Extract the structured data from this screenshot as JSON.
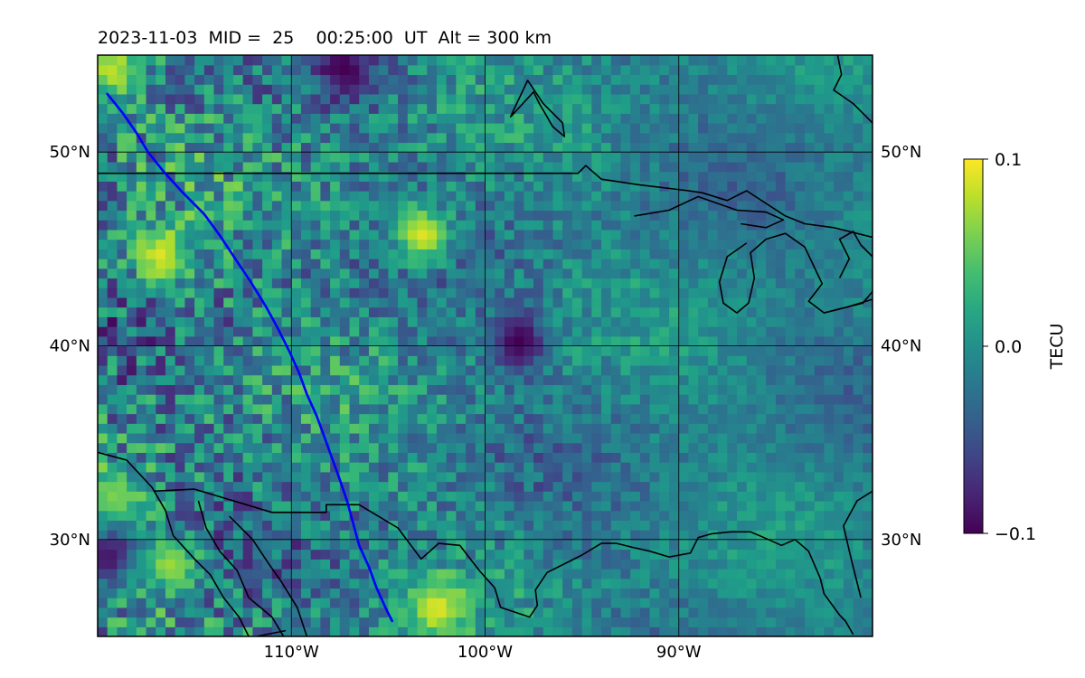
{
  "chart_data": {
    "type": "heatmap",
    "title": "2023-11-03  MID =  25    00:25:00  UT  Alt = 300 km",
    "projection": "lat-lon map",
    "xlim": [
      -120,
      -80
    ],
    "ylim": [
      25,
      55
    ],
    "x_ticks": [
      -110,
      -100,
      -90
    ],
    "x_tick_labels": [
      "110°W",
      "100°W",
      "90°W"
    ],
    "y_ticks": [
      30,
      40,
      50
    ],
    "y_tick_labels_left": [
      "30°N",
      "40°N",
      "50°N"
    ],
    "y_tick_labels_right": [
      "30°N",
      "40°N",
      "50°N"
    ],
    "grid": true,
    "colormap": "viridis",
    "colorbar": {
      "label": "TECU",
      "vmin": -0.1,
      "vmax": 0.1,
      "ticks": [
        0.1,
        0.0,
        -0.1
      ],
      "tick_labels": [
        "0.1",
        "0.0",
        "−0.1"
      ],
      "placement": "right"
    },
    "field": {
      "quantity": "TEC perturbation",
      "units": "TECU",
      "grid_resolution_deg": 0.5,
      "character": "noisy field centered near 0, higher variance in the west, smoother in the east",
      "features": [
        {
          "label": "",
          "lon": -107.5,
          "lat": 54,
          "value": -0.1
        },
        {
          "label": "",
          "lon": -119.5,
          "lat": 29,
          "value": -0.09
        },
        {
          "label": "",
          "lon": -116.5,
          "lat": 28.5,
          "value": 0.07
        },
        {
          "label": "",
          "lon": -119.5,
          "lat": 32,
          "value": 0.06
        },
        {
          "label": "",
          "lon": -119.5,
          "lat": 54,
          "value": 0.08
        },
        {
          "label": "",
          "lon": -103.5,
          "lat": 45.5,
          "value": 0.09
        },
        {
          "label": "",
          "lon": -117.0,
          "lat": 44.5,
          "value": 0.09
        },
        {
          "label": "",
          "lon": -102.7,
          "lat": 26.2,
          "value": 0.09
        },
        {
          "label": "",
          "lon": -98.5,
          "lat": 40,
          "value": -0.1
        }
      ]
    },
    "track": {
      "color": "#0000ff",
      "points": [
        [
          -119.5,
          53
        ],
        [
          -118.7,
          52
        ],
        [
          -118,
          51
        ],
        [
          -117.4,
          50
        ],
        [
          -116.6,
          49
        ],
        [
          -115.6,
          47.9
        ],
        [
          -114.5,
          46.8
        ],
        [
          -113.7,
          45.7
        ],
        [
          -112.9,
          44.5
        ],
        [
          -112.1,
          43.3
        ],
        [
          -111.3,
          42
        ],
        [
          -110.7,
          40.9
        ],
        [
          -110.1,
          39.7
        ],
        [
          -109.6,
          38.6
        ],
        [
          -109.2,
          37.5
        ],
        [
          -108.7,
          36.4
        ],
        [
          -108.3,
          35.3
        ],
        [
          -107.9,
          34.2
        ],
        [
          -107.5,
          33.1
        ],
        [
          -107.1,
          31.9
        ],
        [
          -106.8,
          30.8
        ],
        [
          -106.5,
          29.7
        ],
        [
          -106.0,
          28.6
        ],
        [
          -105.6,
          27.5
        ],
        [
          -105.1,
          26.4
        ],
        [
          -104.8,
          25.8
        ]
      ]
    },
    "coastlines": [
      [
        [
          -120,
          48.9
        ],
        [
          -115,
          48.9
        ],
        [
          -105,
          48.9
        ],
        [
          -95.2,
          48.9
        ],
        [
          -94.8,
          49.3
        ],
        [
          -94,
          48.6
        ],
        [
          -92,
          48.3
        ],
        [
          -89.5,
          48.0
        ],
        [
          -88.8,
          47.9
        ],
        [
          -87.5,
          47.5
        ],
        [
          -86.5,
          48
        ],
        [
          -84.5,
          46.7
        ],
        [
          -83.5,
          46.3
        ],
        [
          -82,
          46.1
        ],
        [
          -80,
          45.6
        ]
      ],
      [
        [
          -80,
          51.5
        ],
        [
          -81,
          52.5
        ],
        [
          -82,
          53.2
        ],
        [
          -81.6,
          54
        ],
        [
          -81.8,
          55
        ]
      ],
      [
        [
          -98.7,
          51.8
        ],
        [
          -97.8,
          53.7
        ],
        [
          -97.0,
          52.5
        ],
        [
          -96.0,
          51.5
        ],
        [
          -95.9,
          50.8
        ],
        [
          -96.5,
          51.3
        ],
        [
          -97.2,
          52.5
        ],
        [
          -97.5,
          53.1
        ],
        [
          -98.7,
          51.8
        ]
      ],
      [
        [
          -92.3,
          46.7
        ],
        [
          -90.5,
          47.0
        ],
        [
          -89,
          47.7
        ],
        [
          -87,
          47.0
        ],
        [
          -85.5,
          46.9
        ],
        [
          -84.6,
          46.5
        ],
        [
          -85.5,
          46.1
        ],
        [
          -86.8,
          46.3
        ]
      ],
      [
        [
          -86.5,
          45.3
        ],
        [
          -87.5,
          44.6
        ],
        [
          -87.9,
          43.3
        ],
        [
          -87.7,
          42.2
        ],
        [
          -87.0,
          41.7
        ],
        [
          -86.4,
          42.2
        ],
        [
          -86.1,
          43.5
        ],
        [
          -86.3,
          44.8
        ],
        [
          -85.5,
          45.5
        ],
        [
          -84.5,
          45.8
        ],
        [
          -83.5,
          45.1
        ],
        [
          -82.6,
          43.2
        ],
        [
          -83.3,
          42.3
        ],
        [
          -82.5,
          41.7
        ],
        [
          -80.5,
          42.2
        ],
        [
          -80,
          42.8
        ]
      ],
      [
        [
          -81.7,
          43.5
        ],
        [
          -81.2,
          44.5
        ],
        [
          -81.7,
          45.5
        ],
        [
          -81.0,
          45.9
        ],
        [
          -80.6,
          45.2
        ],
        [
          -80,
          44.6
        ]
      ],
      [
        [
          -82.5,
          41.7
        ],
        [
          -81.3,
          42.0
        ],
        [
          -80,
          42.4
        ]
      ],
      [
        [
          -120,
          34.5
        ],
        [
          -118.5,
          34.1
        ],
        [
          -117.2,
          32.7
        ],
        [
          -116.5,
          31.5
        ],
        [
          -116.1,
          30.2
        ],
        [
          -115,
          29.0
        ],
        [
          -114.2,
          28.2
        ],
        [
          -113.5,
          27.0
        ],
        [
          -112.7,
          26.0
        ],
        [
          -112.2,
          25
        ]
      ],
      [
        [
          -117.1,
          32.5
        ],
        [
          -115,
          32.6
        ],
        [
          -111.0,
          31.4
        ],
        [
          -108.2,
          31.4
        ],
        [
          -108.2,
          31.8
        ],
        [
          -106.5,
          31.8
        ],
        [
          -104.5,
          30.6
        ],
        [
          -103.3,
          29.0
        ],
        [
          -102.4,
          29.8
        ],
        [
          -101.3,
          29.7
        ],
        [
          -100.3,
          28.4
        ],
        [
          -99.5,
          27.5
        ],
        [
          -99.2,
          26.5
        ],
        [
          -97.7,
          26.0
        ],
        [
          -97.3,
          26.6
        ],
        [
          -97.4,
          27.4
        ],
        [
          -96.8,
          28.3
        ],
        [
          -95.0,
          29.2
        ],
        [
          -94.0,
          29.8
        ],
        [
          -93.2,
          29.8
        ],
        [
          -92.4,
          29.6
        ],
        [
          -91.5,
          29.4
        ],
        [
          -90.5,
          29.1
        ],
        [
          -89.4,
          29.3
        ],
        [
          -89.0,
          30.1
        ],
        [
          -88.3,
          30.3
        ],
        [
          -87.3,
          30.4
        ],
        [
          -86.3,
          30.4
        ],
        [
          -85.6,
          30.1
        ],
        [
          -84.7,
          29.7
        ],
        [
          -84.0,
          30.0
        ],
        [
          -83.3,
          29.4
        ],
        [
          -82.7,
          28.0
        ],
        [
          -82.5,
          27.2
        ],
        [
          -81.7,
          26.1
        ],
        [
          -81.4,
          25.8
        ],
        [
          -81.0,
          25.1
        ]
      ],
      [
        [
          -80.6,
          27.0
        ],
        [
          -81.1,
          29.0
        ],
        [
          -81.5,
          30.7
        ],
        [
          -80.8,
          32.0
        ],
        [
          -80,
          32.5
        ]
      ],
      [
        [
          -114.8,
          32.0
        ],
        [
          -114.4,
          30.6
        ],
        [
          -113.7,
          29.4
        ],
        [
          -112.8,
          28.4
        ],
        [
          -112.2,
          27.0
        ],
        [
          -111.0,
          26.0
        ],
        [
          -110.4,
          25
        ]
      ],
      [
        [
          -113.2,
          31.2
        ],
        [
          -112.0,
          30.0
        ],
        [
          -111.2,
          28.8
        ],
        [
          -110.5,
          27.8
        ],
        [
          -109.7,
          26.5
        ],
        [
          -109.2,
          25.0
        ]
      ],
      [
        [
          -111.8,
          25.0
        ],
        [
          -110.3,
          25.3
        ]
      ]
    ]
  }
}
